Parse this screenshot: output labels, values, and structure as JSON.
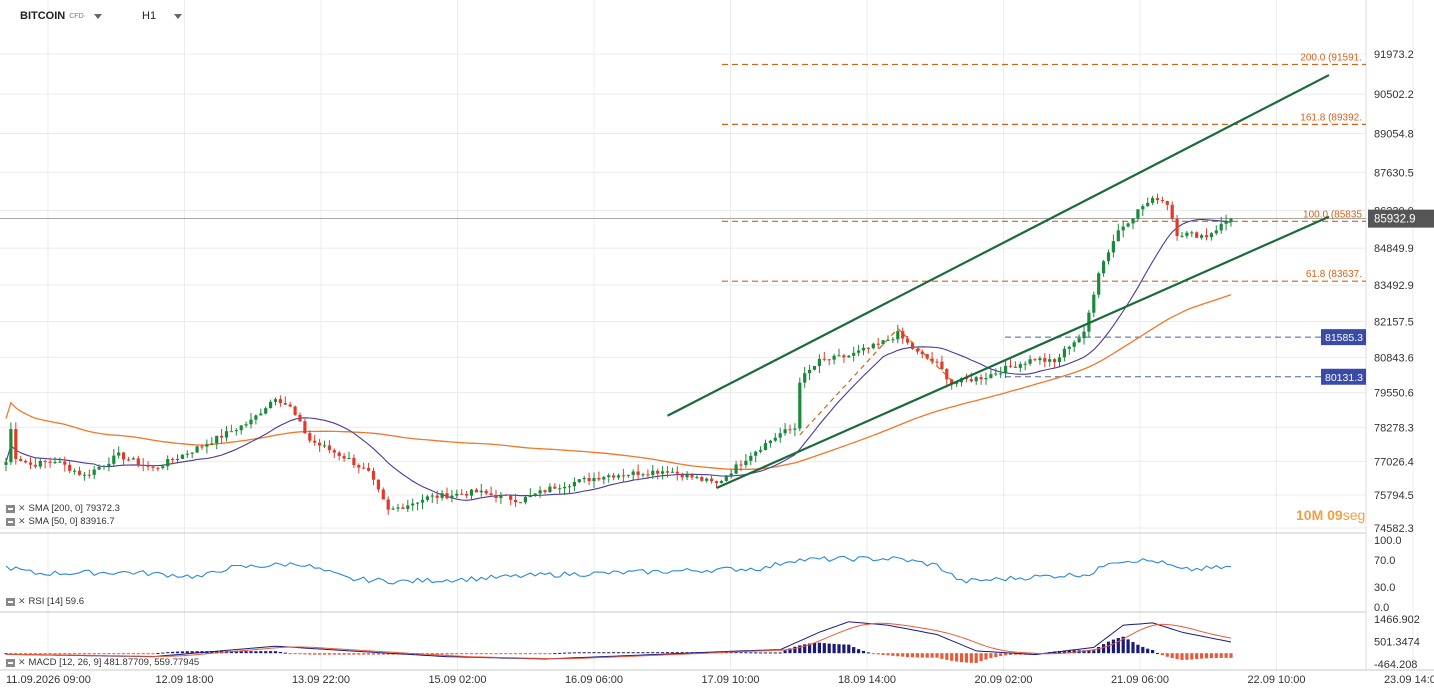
{
  "header": {
    "symbol": "BITCOIN",
    "symbol_tag": "CFD·",
    "timeframe": "H1"
  },
  "colors": {
    "sma200": "#f07828",
    "sma50": "#4a3a9a",
    "up": "#1a8a3a",
    "down": "#e03a2a",
    "channel": "#1a6a3a",
    "fib": "#d86018",
    "hline": "#4a60a8",
    "rsi": "#2a8ad8",
    "macd_line": "#1a1a7a",
    "macd_signal": "#e85a3a",
    "grid": "#ececec"
  },
  "indicators": {
    "sma200_label": "SMA [200, 0] 79372.3",
    "sma50_label": "SMA [50, 0] 83916.7",
    "rsi_label": "RSI [14] 59.6",
    "macd_label": "MACD [12, 26, 9] 481.87709, 559.77945"
  },
  "countdown": {
    "minutes": "10M",
    "seconds": "09",
    "suffix": "seg"
  },
  "price_axis": [
    "91973.2",
    "90502.2",
    "89054.8",
    "87630.5",
    "86230.0",
    "84849.9",
    "83492.9",
    "82157.5",
    "80843.6",
    "79550.6",
    "78278.3",
    "77026.4",
    "75794.5",
    "74582.3"
  ],
  "current_price": "85932.9",
  "rsi_axis": [
    "100.0",
    "70.0",
    "30.0",
    "0.0"
  ],
  "macd_axis": [
    "1466.902",
    "501.3474",
    "-464.208"
  ],
  "time_axis": [
    "11.09.2026 09:00",
    "12.09 18:00",
    "13.09 22:00",
    "15.09 02:00",
    "16.09 06:00",
    "17.09 10:00",
    "18.09 14:00",
    "20.09 02:00",
    "21.09 06:00",
    "22.09 10:00",
    "23.09 14:00"
  ],
  "fib_levels": [
    {
      "label": "200.0 (91591.",
      "price": 91591
    },
    {
      "label": "161.8 (89392.",
      "price": 89392
    },
    {
      "label": "100.0 (85835",
      "price": 85835
    },
    {
      "label": "61.8 (83637.",
      "price": 83637
    }
  ],
  "horizontal_levels": [
    {
      "label": "81585.3",
      "price": 81585.3
    },
    {
      "label": "80131.3",
      "price": 80131.3
    }
  ],
  "chart_data": {
    "type": "candlestick",
    "symbol": "BITCOIN",
    "timeframe": "H1",
    "x_range": [
      "11.09.2026 09:00",
      "23.09 14:00"
    ],
    "y_range": [
      74582.3,
      91973.2
    ],
    "price_knots": [
      [
        0,
        77000
      ],
      [
        0.5,
        79000
      ],
      [
        1,
        78200
      ],
      [
        2,
        77200
      ],
      [
        5,
        76900
      ],
      [
        10,
        77050
      ],
      [
        16,
        76500
      ],
      [
        23,
        77250
      ],
      [
        30,
        76750
      ],
      [
        40,
        77600
      ],
      [
        50,
        78500
      ],
      [
        55,
        79400
      ],
      [
        58,
        79000
      ],
      [
        62,
        77800
      ],
      [
        70,
        77100
      ],
      [
        74,
        76600
      ],
      [
        78,
        75200
      ],
      [
        86,
        75700
      ],
      [
        96,
        75900
      ],
      [
        105,
        75600
      ],
      [
        112,
        76100
      ],
      [
        122,
        76500
      ],
      [
        135,
        76700
      ],
      [
        145,
        76200
      ],
      [
        152,
        77300
      ],
      [
        158,
        78050
      ],
      [
        161,
        78250
      ],
      [
        162,
        80000
      ],
      [
        166,
        80700
      ],
      [
        172,
        80900
      ],
      [
        178,
        81300
      ],
      [
        182,
        81700
      ],
      [
        186,
        81000
      ],
      [
        190,
        80600
      ],
      [
        193,
        79900
      ],
      [
        200,
        80150
      ],
      [
        205,
        80500
      ],
      [
        210,
        80800
      ],
      [
        214,
        80650
      ],
      [
        217,
        81300
      ],
      [
        220,
        81700
      ],
      [
        223,
        84000
      ],
      [
        227,
        85500
      ],
      [
        232,
        86400
      ],
      [
        235,
        86700
      ],
      [
        237,
        86500
      ],
      [
        239,
        85400
      ],
      [
        245,
        85300
      ],
      [
        250,
        85950
      ]
    ],
    "sma200": {
      "name": "SMA [200, 0]",
      "last": 79372.3
    },
    "sma50": {
      "name": "SMA [50, 0]",
      "last": 83916.7
    },
    "channel": {
      "upper": [
        [
          135,
          78700
        ],
        [
          270,
          91200
        ]
      ],
      "lower": [
        [
          145,
          76050
        ],
        [
          270,
          86000
        ]
      ]
    },
    "rsi": {
      "name": "RSI [14]",
      "last": 59.6,
      "range": [
        0,
        100
      ],
      "knots": [
        [
          0,
          60
        ],
        [
          6,
          50
        ],
        [
          25,
          52
        ],
        [
          40,
          45
        ],
        [
          45,
          58
        ],
        [
          60,
          65
        ],
        [
          70,
          42
        ],
        [
          80,
          38
        ],
        [
          95,
          42
        ],
        [
          110,
          48
        ],
        [
          130,
          52
        ],
        [
          155,
          58
        ],
        [
          160,
          70
        ],
        [
          172,
          72
        ],
        [
          182,
          72
        ],
        [
          190,
          62
        ],
        [
          195,
          38
        ],
        [
          210,
          45
        ],
        [
          222,
          50
        ],
        [
          225,
          68
        ],
        [
          230,
          70
        ],
        [
          235,
          68
        ],
        [
          240,
          55
        ],
        [
          250,
          59.6
        ]
      ]
    },
    "macd": {
      "name": "MACD [12, 26, 9]",
      "macd": 481.87709,
      "signal": 559.77945,
      "range": [
        -464.208,
        1466.902
      ],
      "knots": [
        [
          0,
          -50
        ],
        [
          30,
          -150
        ],
        [
          55,
          300
        ],
        [
          70,
          100
        ],
        [
          90,
          -150
        ],
        [
          110,
          -250
        ],
        [
          130,
          -80
        ],
        [
          150,
          100
        ],
        [
          158,
          150
        ],
        [
          166,
          900
        ],
        [
          172,
          1350
        ],
        [
          180,
          1200
        ],
        [
          190,
          800
        ],
        [
          198,
          100
        ],
        [
          210,
          -60
        ],
        [
          222,
          250
        ],
        [
          228,
          1200
        ],
        [
          234,
          1300
        ],
        [
          240,
          900
        ],
        [
          250,
          480
        ]
      ]
    }
  }
}
